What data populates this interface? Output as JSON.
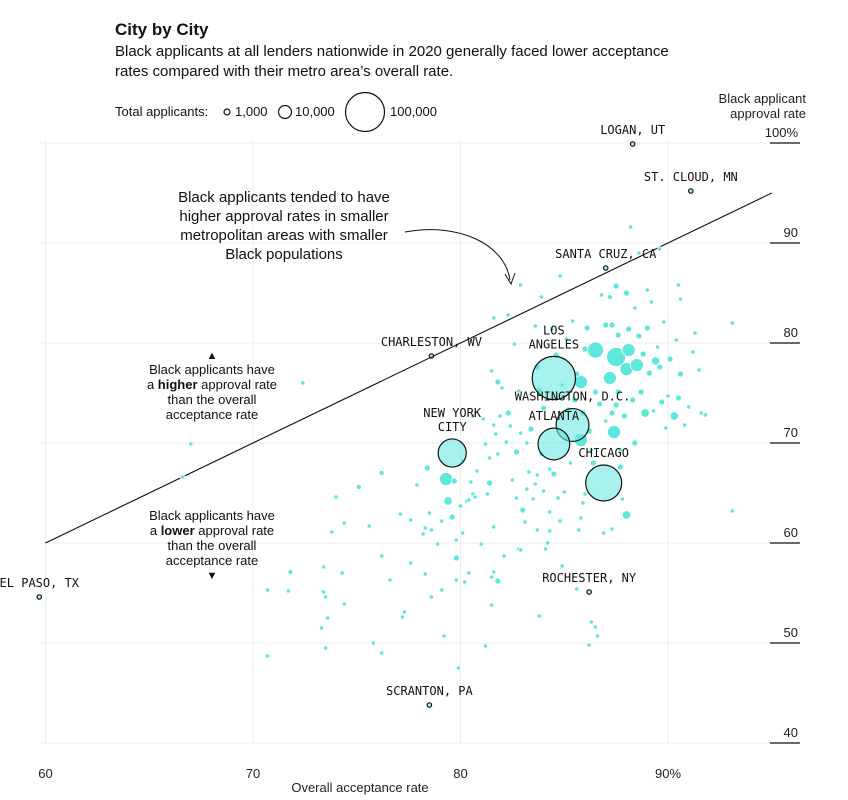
{
  "header": {
    "title": "City by City",
    "subtitle": "Black applicants at all lenders nationwide in 2020 generally faced lower acceptance rates compared with their metro area’s overall rate."
  },
  "legend": {
    "label": "Total applicants:",
    "items": [
      {
        "label": "1,000",
        "value": 1000
      },
      {
        "label": "10,000",
        "value": 10000
      },
      {
        "label": "100,000",
        "value": 100000
      }
    ]
  },
  "colors": {
    "bubble": "#5ee8dc",
    "bubble_stroke": "#ffffff",
    "outline": "#111111",
    "grid": "#ececec"
  },
  "annotations": {
    "callout": [
      "Black applicants tended to have",
      "higher approval rates in smaller",
      "metropolitan areas with smaller",
      "Black populations"
    ],
    "higher": [
      "Black applicants have",
      "a |higher| approval rate",
      "than the overall",
      "acceptance rate"
    ],
    "lower": [
      "Black applicants have",
      "a |lower| approval rate",
      "than the overall",
      "acceptance rate"
    ],
    "up_arrow": "▲",
    "down_arrow": "▼"
  },
  "chart_data": {
    "type": "scatter",
    "xlabel": "Overall acceptance rate",
    "ylabel": [
      "Black applicant",
      "approval rate"
    ],
    "xlim": [
      60,
      95
    ],
    "ylim": [
      40,
      100
    ],
    "xticks": [
      {
        "v": 60,
        "label": "60"
      },
      {
        "v": 70,
        "label": "70"
      },
      {
        "v": 80,
        "label": "80"
      },
      {
        "v": 90,
        "label": "90%"
      }
    ],
    "yticks": [
      {
        "v": 100,
        "label": "100%"
      },
      {
        "v": 90,
        "label": "90"
      },
      {
        "v": 80,
        "label": "80"
      },
      {
        "v": 70,
        "label": "70"
      },
      {
        "v": 60,
        "label": "60"
      },
      {
        "v": 50,
        "label": "50"
      },
      {
        "v": 40,
        "label": "40"
      }
    ],
    "reference_line": {
      "x": [
        60,
        95
      ],
      "y": [
        60,
        95
      ]
    },
    "labeled_points": [
      {
        "label": [
          "LOGAN, UT"
        ],
        "x": 88.3,
        "y": 99.9,
        "n": 700
      },
      {
        "label": [
          "ST. CLOUD, MN"
        ],
        "x": 91.1,
        "y": 95.2,
        "n": 700
      },
      {
        "label": [
          "SANTA CRUZ, CA"
        ],
        "x": 87.0,
        "y": 87.5,
        "n": 900
      },
      {
        "label": [
          "CHARLESTON, WV"
        ],
        "x": 78.6,
        "y": 78.7,
        "n": 250
      },
      {
        "label": [
          "LOS",
          "ANGELES"
        ],
        "x": 84.5,
        "y": 76.5,
        "n": 130000
      },
      {
        "label": [
          "WASHINGTON, D.C."
        ],
        "x": 85.4,
        "y": 71.8,
        "n": 75000
      },
      {
        "label": [
          "NEW YORK",
          "CITY"
        ],
        "x": 79.6,
        "y": 69.0,
        "n": 55000
      },
      {
        "label": [
          "ATLANTA"
        ],
        "x": 84.5,
        "y": 69.9,
        "n": 70000
      },
      {
        "label": [
          "CHICAGO"
        ],
        "x": 86.9,
        "y": 66.0,
        "n": 90000
      },
      {
        "label": [
          "ROCHESTER, NY"
        ],
        "x": 86.2,
        "y": 55.1,
        "n": 1200
      },
      {
        "label": [
          "EL PASO, TX"
        ],
        "x": 59.7,
        "y": 54.6,
        "n": 700
      },
      {
        "label": [
          "SCRANTON, PA"
        ],
        "x": 78.5,
        "y": 43.8,
        "n": 700
      }
    ],
    "points": [
      {
        "x": 66.6,
        "y": 66.6,
        "n": 250
      },
      {
        "x": 67.0,
        "y": 69.9,
        "n": 120
      },
      {
        "x": 72.4,
        "y": 76.0,
        "n": 120
      },
      {
        "x": 70.7,
        "y": 48.7,
        "n": 300
      },
      {
        "x": 71.8,
        "y": 57.1,
        "n": 1800
      },
      {
        "x": 70.7,
        "y": 55.3,
        "n": 120
      },
      {
        "x": 71.7,
        "y": 55.2,
        "n": 120
      },
      {
        "x": 73.3,
        "y": 51.5,
        "n": 120
      },
      {
        "x": 73.4,
        "y": 57.6,
        "n": 250
      },
      {
        "x": 73.5,
        "y": 54.6,
        "n": 120
      },
      {
        "x": 73.6,
        "y": 52.5,
        "n": 250
      },
      {
        "x": 73.5,
        "y": 49.5,
        "n": 300
      },
      {
        "x": 73.4,
        "y": 55.1,
        "n": 120
      },
      {
        "x": 73.8,
        "y": 61.1,
        "n": 120
      },
      {
        "x": 74.0,
        "y": 64.6,
        "n": 300
      },
      {
        "x": 74.4,
        "y": 53.9,
        "n": 120
      },
      {
        "x": 74.3,
        "y": 57.0,
        "n": 120
      },
      {
        "x": 74.4,
        "y": 62.0,
        "n": 300
      },
      {
        "x": 75.1,
        "y": 65.6,
        "n": 1800
      },
      {
        "x": 75.6,
        "y": 61.7,
        "n": 120
      },
      {
        "x": 75.8,
        "y": 50.0,
        "n": 250
      },
      {
        "x": 76.2,
        "y": 49.0,
        "n": 250
      },
      {
        "x": 76.2,
        "y": 58.7,
        "n": 900
      },
      {
        "x": 76.2,
        "y": 67.0,
        "n": 1800
      },
      {
        "x": 76.6,
        "y": 56.3,
        "n": 250
      },
      {
        "x": 77.1,
        "y": 62.9,
        "n": 700
      },
      {
        "x": 77.2,
        "y": 52.6,
        "n": 120
      },
      {
        "x": 77.3,
        "y": 53.1,
        "n": 300
      },
      {
        "x": 77.6,
        "y": 58.0,
        "n": 300
      },
      {
        "x": 77.6,
        "y": 62.3,
        "n": 300
      },
      {
        "x": 77.9,
        "y": 65.8,
        "n": 300
      },
      {
        "x": 78.2,
        "y": 60.9,
        "n": 300
      },
      {
        "x": 78.3,
        "y": 56.9,
        "n": 700
      },
      {
        "x": 78.3,
        "y": 61.5,
        "n": 1200
      },
      {
        "x": 78.4,
        "y": 67.5,
        "n": 2500
      },
      {
        "x": 78.5,
        "y": 63.0,
        "n": 300
      },
      {
        "x": 78.6,
        "y": 54.6,
        "n": 700
      },
      {
        "x": 78.6,
        "y": 61.3,
        "n": 300
      },
      {
        "x": 78.9,
        "y": 59.9,
        "n": 300
      },
      {
        "x": 79.1,
        "y": 62.2,
        "n": 1200
      },
      {
        "x": 79.1,
        "y": 55.3,
        "n": 120
      },
      {
        "x": 79.2,
        "y": 50.7,
        "n": 120
      },
      {
        "x": 79.3,
        "y": 66.4,
        "n": 12000
      },
      {
        "x": 79.4,
        "y": 64.2,
        "n": 5000
      },
      {
        "x": 79.6,
        "y": 62.6,
        "n": 2500
      },
      {
        "x": 79.7,
        "y": 66.2,
        "n": 2500
      },
      {
        "x": 79.8,
        "y": 60.3,
        "n": 300
      },
      {
        "x": 79.8,
        "y": 58.5,
        "n": 2500
      },
      {
        "x": 79.8,
        "y": 56.3,
        "n": 300
      },
      {
        "x": 79.9,
        "y": 47.5,
        "n": 120
      },
      {
        "x": 80.0,
        "y": 63.7,
        "n": 700
      },
      {
        "x": 80.1,
        "y": 61.0,
        "n": 300
      },
      {
        "x": 80.1,
        "y": 68.2,
        "n": 700
      },
      {
        "x": 80.2,
        "y": 56.1,
        "n": 700
      },
      {
        "x": 80.3,
        "y": 64.2,
        "n": 900
      },
      {
        "x": 80.4,
        "y": 57.0,
        "n": 300
      },
      {
        "x": 80.4,
        "y": 64.3,
        "n": 300
      },
      {
        "x": 80.5,
        "y": 66.1,
        "n": 120
      },
      {
        "x": 80.6,
        "y": 64.9,
        "n": 700
      },
      {
        "x": 80.6,
        "y": 72.7,
        "n": 300
      },
      {
        "x": 80.7,
        "y": 64.6,
        "n": 300
      },
      {
        "x": 80.8,
        "y": 67.2,
        "n": 120
      },
      {
        "x": 81.0,
        "y": 59.9,
        "n": 300
      },
      {
        "x": 81.1,
        "y": 72.4,
        "n": 700
      },
      {
        "x": 81.2,
        "y": 49.7,
        "n": 120
      },
      {
        "x": 81.2,
        "y": 69.9,
        "n": 120
      },
      {
        "x": 81.3,
        "y": 64.9,
        "n": 700
      },
      {
        "x": 81.4,
        "y": 66.0,
        "n": 2500
      },
      {
        "x": 81.4,
        "y": 68.5,
        "n": 300
      },
      {
        "x": 81.5,
        "y": 53.8,
        "n": 120
      },
      {
        "x": 81.5,
        "y": 56.6,
        "n": 1200
      },
      {
        "x": 81.5,
        "y": 77.2,
        "n": 300
      },
      {
        "x": 81.6,
        "y": 61.6,
        "n": 120
      },
      {
        "x": 81.6,
        "y": 71.8,
        "n": 700
      },
      {
        "x": 81.6,
        "y": 82.5,
        "n": 300
      },
      {
        "x": 81.6,
        "y": 57.1,
        "n": 700
      },
      {
        "x": 81.7,
        "y": 70.9,
        "n": 300
      },
      {
        "x": 81.8,
        "y": 56.2,
        "n": 2500
      },
      {
        "x": 81.8,
        "y": 68.9,
        "n": 700
      },
      {
        "x": 81.8,
        "y": 76.1,
        "n": 2500
      },
      {
        "x": 81.9,
        "y": 72.7,
        "n": 120
      },
      {
        "x": 82.0,
        "y": 75.5,
        "n": 900
      },
      {
        "x": 82.1,
        "y": 58.7,
        "n": 300
      },
      {
        "x": 82.2,
        "y": 70.1,
        "n": 120
      },
      {
        "x": 82.3,
        "y": 73.0,
        "n": 2500
      },
      {
        "x": 82.3,
        "y": 82.8,
        "n": 120
      },
      {
        "x": 82.4,
        "y": 71.7,
        "n": 700
      },
      {
        "x": 82.5,
        "y": 66.3,
        "n": 120
      },
      {
        "x": 82.6,
        "y": 79.9,
        "n": 120
      },
      {
        "x": 82.7,
        "y": 64.5,
        "n": 300
      },
      {
        "x": 82.7,
        "y": 69.1,
        "n": 2500
      },
      {
        "x": 82.8,
        "y": 75.2,
        "n": 700
      },
      {
        "x": 82.8,
        "y": 59.4,
        "n": 300
      },
      {
        "x": 82.9,
        "y": 71.0,
        "n": 300
      },
      {
        "x": 82.9,
        "y": 85.8,
        "n": 300
      },
      {
        "x": 83.0,
        "y": 63.3,
        "n": 2500
      },
      {
        "x": 83.1,
        "y": 62.1,
        "n": 300
      },
      {
        "x": 83.2,
        "y": 65.4,
        "n": 700
      },
      {
        "x": 83.2,
        "y": 70.0,
        "n": 120
      },
      {
        "x": 83.3,
        "y": 67.1,
        "n": 700
      },
      {
        "x": 83.4,
        "y": 71.4,
        "n": 2500
      },
      {
        "x": 83.5,
        "y": 64.4,
        "n": 300
      },
      {
        "x": 83.6,
        "y": 65.9,
        "n": 1200
      },
      {
        "x": 83.6,
        "y": 81.7,
        "n": 300
      },
      {
        "x": 83.7,
        "y": 61.3,
        "n": 300
      },
      {
        "x": 83.7,
        "y": 66.8,
        "n": 300
      },
      {
        "x": 83.7,
        "y": 77.6,
        "n": 2500
      },
      {
        "x": 83.8,
        "y": 75.3,
        "n": 2500
      },
      {
        "x": 83.8,
        "y": 52.7,
        "n": 700
      },
      {
        "x": 83.9,
        "y": 68.9,
        "n": 1800
      },
      {
        "x": 83.9,
        "y": 84.6,
        "n": 300
      },
      {
        "x": 84.0,
        "y": 65.2,
        "n": 700
      },
      {
        "x": 84.0,
        "y": 73.5,
        "n": 2500
      },
      {
        "x": 84.1,
        "y": 59.4,
        "n": 700
      },
      {
        "x": 84.2,
        "y": 60.0,
        "n": 300
      },
      {
        "x": 84.3,
        "y": 61.2,
        "n": 700
      },
      {
        "x": 84.3,
        "y": 63.1,
        "n": 300
      },
      {
        "x": 84.3,
        "y": 67.4,
        "n": 120
      },
      {
        "x": 84.4,
        "y": 81.4,
        "n": 300
      },
      {
        "x": 84.5,
        "y": 66.9,
        "n": 2500
      },
      {
        "x": 84.6,
        "y": 78.8,
        "n": 2500
      },
      {
        "x": 84.7,
        "y": 64.5,
        "n": 700
      },
      {
        "x": 84.8,
        "y": 62.2,
        "n": 300
      },
      {
        "x": 84.8,
        "y": 86.7,
        "n": 300
      },
      {
        "x": 84.9,
        "y": 75.8,
        "n": 700
      },
      {
        "x": 84.9,
        "y": 57.7,
        "n": 300
      },
      {
        "x": 85.0,
        "y": 65.1,
        "n": 300
      },
      {
        "x": 85.1,
        "y": 70.4,
        "n": 700
      },
      {
        "x": 85.1,
        "y": 80.4,
        "n": 300
      },
      {
        "x": 85.2,
        "y": 73.3,
        "n": 2500
      },
      {
        "x": 85.3,
        "y": 68.0,
        "n": 700
      },
      {
        "x": 85.4,
        "y": 82.2,
        "n": 120
      },
      {
        "x": 85.5,
        "y": 74.3,
        "n": 2500
      },
      {
        "x": 85.6,
        "y": 76.9,
        "n": 2500
      },
      {
        "x": 85.6,
        "y": 55.4,
        "n": 120
      },
      {
        "x": 85.7,
        "y": 61.3,
        "n": 300
      },
      {
        "x": 85.8,
        "y": 76.1,
        "n": 12000
      },
      {
        "x": 85.8,
        "y": 70.3,
        "n": 12000
      },
      {
        "x": 85.8,
        "y": 62.5,
        "n": 300
      },
      {
        "x": 85.9,
        "y": 73.0,
        "n": 2500
      },
      {
        "x": 85.9,
        "y": 64.0,
        "n": 300
      },
      {
        "x": 86.0,
        "y": 64.9,
        "n": 300
      },
      {
        "x": 86.0,
        "y": 79.4,
        "n": 2500
      },
      {
        "x": 86.1,
        "y": 81.5,
        "n": 2500
      },
      {
        "x": 86.2,
        "y": 49.8,
        "n": 300
      },
      {
        "x": 86.2,
        "y": 71.2,
        "n": 2500
      },
      {
        "x": 86.3,
        "y": 69.3,
        "n": 700
      },
      {
        "x": 86.3,
        "y": 52.1,
        "n": 120
      },
      {
        "x": 86.4,
        "y": 68.0,
        "n": 2500
      },
      {
        "x": 86.5,
        "y": 75.1,
        "n": 2500
      },
      {
        "x": 86.5,
        "y": 79.3,
        "n": 18000
      },
      {
        "x": 86.5,
        "y": 51.6,
        "n": 300
      },
      {
        "x": 86.6,
        "y": 50.7,
        "n": 300
      },
      {
        "x": 86.7,
        "y": 73.9,
        "n": 2500
      },
      {
        "x": 86.8,
        "y": 84.8,
        "n": 300
      },
      {
        "x": 86.9,
        "y": 61.0,
        "n": 300
      },
      {
        "x": 87.0,
        "y": 81.8,
        "n": 2500
      },
      {
        "x": 87.0,
        "y": 72.2,
        "n": 700
      },
      {
        "x": 87.2,
        "y": 76.5,
        "n": 12000
      },
      {
        "x": 87.2,
        "y": 84.6,
        "n": 1800
      },
      {
        "x": 87.3,
        "y": 81.8,
        "n": 2500
      },
      {
        "x": 87.3,
        "y": 73.0,
        "n": 2500
      },
      {
        "x": 87.3,
        "y": 61.4,
        "n": 700
      },
      {
        "x": 87.4,
        "y": 71.1,
        "n": 12000
      },
      {
        "x": 87.5,
        "y": 73.8,
        "n": 2500
      },
      {
        "x": 87.5,
        "y": 78.6,
        "n": 25000
      },
      {
        "x": 87.5,
        "y": 85.7,
        "n": 2500
      },
      {
        "x": 87.6,
        "y": 80.8,
        "n": 2500
      },
      {
        "x": 87.6,
        "y": 75.1,
        "n": 2500
      },
      {
        "x": 87.7,
        "y": 69.3,
        "n": 700
      },
      {
        "x": 87.7,
        "y": 67.6,
        "n": 2500
      },
      {
        "x": 87.8,
        "y": 64.4,
        "n": 300
      },
      {
        "x": 87.9,
        "y": 72.7,
        "n": 2500
      },
      {
        "x": 88.0,
        "y": 62.8,
        "n": 5000
      },
      {
        "x": 88.0,
        "y": 85.0,
        "n": 2500
      },
      {
        "x": 88.0,
        "y": 77.4,
        "n": 12000
      },
      {
        "x": 88.1,
        "y": 81.4,
        "n": 2500
      },
      {
        "x": 88.1,
        "y": 79.3,
        "n": 12000
      },
      {
        "x": 88.2,
        "y": 91.6,
        "n": 300
      },
      {
        "x": 88.3,
        "y": 74.3,
        "n": 2500
      },
      {
        "x": 88.4,
        "y": 70.0,
        "n": 2500
      },
      {
        "x": 88.4,
        "y": 83.5,
        "n": 700
      },
      {
        "x": 88.5,
        "y": 77.8,
        "n": 12000
      },
      {
        "x": 88.6,
        "y": 80.7,
        "n": 2500
      },
      {
        "x": 88.6,
        "y": 89.0,
        "n": 300
      },
      {
        "x": 88.7,
        "y": 75.1,
        "n": 2500
      },
      {
        "x": 88.8,
        "y": 78.9,
        "n": 2500
      },
      {
        "x": 88.9,
        "y": 73.0,
        "n": 5000
      },
      {
        "x": 89.0,
        "y": 81.5,
        "n": 2500
      },
      {
        "x": 89.0,
        "y": 85.3,
        "n": 700
      },
      {
        "x": 89.1,
        "y": 77.0,
        "n": 2500
      },
      {
        "x": 89.2,
        "y": 84.1,
        "n": 700
      },
      {
        "x": 89.3,
        "y": 73.2,
        "n": 700
      },
      {
        "x": 89.4,
        "y": 78.2,
        "n": 5000
      },
      {
        "x": 89.5,
        "y": 79.6,
        "n": 700
      },
      {
        "x": 89.6,
        "y": 77.6,
        "n": 2500
      },
      {
        "x": 89.6,
        "y": 89.4,
        "n": 300
      },
      {
        "x": 89.7,
        "y": 74.1,
        "n": 2500
      },
      {
        "x": 89.8,
        "y": 82.1,
        "n": 700
      },
      {
        "x": 89.9,
        "y": 71.5,
        "n": 300
      },
      {
        "x": 90.0,
        "y": 74.7,
        "n": 700
      },
      {
        "x": 90.1,
        "y": 78.4,
        "n": 2500
      },
      {
        "x": 90.3,
        "y": 72.7,
        "n": 5000
      },
      {
        "x": 90.4,
        "y": 80.3,
        "n": 700
      },
      {
        "x": 90.5,
        "y": 85.8,
        "n": 300
      },
      {
        "x": 90.5,
        "y": 74.5,
        "n": 2500
      },
      {
        "x": 90.6,
        "y": 84.4,
        "n": 700
      },
      {
        "x": 90.6,
        "y": 76.9,
        "n": 2500
      },
      {
        "x": 90.8,
        "y": 71.8,
        "n": 700
      },
      {
        "x": 91.0,
        "y": 73.6,
        "n": 300
      },
      {
        "x": 91.2,
        "y": 79.1,
        "n": 700
      },
      {
        "x": 91.3,
        "y": 81.0,
        "n": 700
      },
      {
        "x": 91.5,
        "y": 77.3,
        "n": 900
      },
      {
        "x": 91.6,
        "y": 73.0,
        "n": 300
      },
      {
        "x": 91.8,
        "y": 72.8,
        "n": 300
      },
      {
        "x": 93.1,
        "y": 82.0,
        "n": 300
      },
      {
        "x": 93.1,
        "y": 63.2,
        "n": 700
      },
      {
        "x": 82.9,
        "y": 59.3,
        "n": 300
      }
    ]
  }
}
